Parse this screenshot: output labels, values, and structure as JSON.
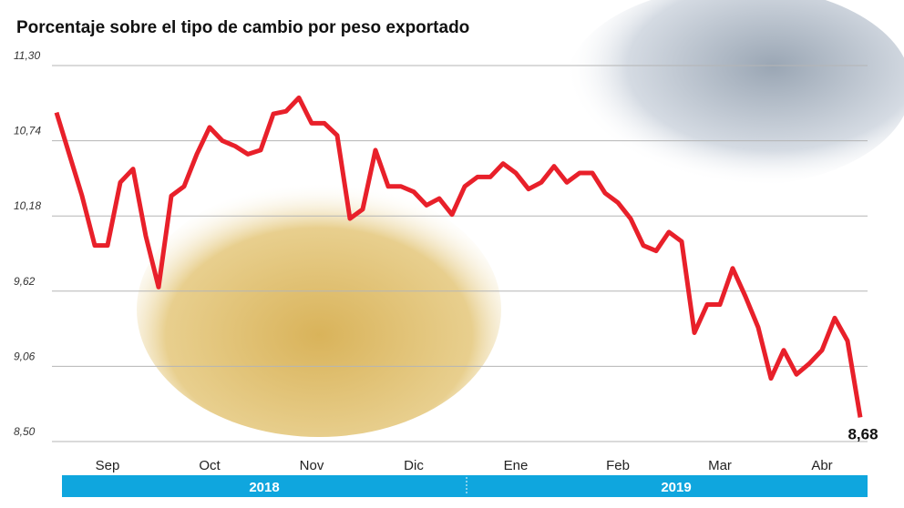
{
  "chart_data": {
    "type": "line",
    "title": "Porcentaje sobre el tipo de cambio por peso exportado",
    "categories": [
      null,
      null,
      null,
      null,
      "Sep",
      null,
      null,
      null,
      null,
      null,
      null,
      null,
      "Oct",
      null,
      null,
      null,
      null,
      null,
      null,
      null,
      "Nov",
      null,
      null,
      null,
      null,
      null,
      null,
      null,
      "Dic",
      null,
      null,
      null,
      null,
      null,
      null,
      null,
      "Ene",
      null,
      null,
      null,
      null,
      null,
      null,
      null,
      "Feb",
      null,
      null,
      null,
      null,
      null,
      null,
      null,
      "Mar",
      null,
      null,
      null,
      null,
      null,
      null,
      null,
      "Abr",
      null,
      null,
      null
    ],
    "series": [
      {
        "color": "#e8202a",
        "values": [
          10.95,
          10.64,
          10.33,
          9.96,
          9.96,
          10.43,
          10.53,
          10.03,
          9.65,
          10.33,
          10.4,
          10.64,
          10.84,
          10.74,
          10.7,
          10.64,
          10.67,
          10.94,
          10.96,
          11.06,
          10.87,
          10.87,
          10.78,
          10.16,
          10.23,
          10.67,
          10.4,
          10.4,
          10.36,
          10.26,
          10.31,
          10.19,
          10.4,
          10.47,
          10.47,
          10.57,
          10.5,
          10.38,
          10.43,
          10.55,
          10.43,
          10.5,
          10.5,
          10.35,
          10.28,
          10.16,
          9.96,
          9.92,
          10.06,
          9.99,
          9.31,
          9.52,
          9.52,
          9.79,
          9.58,
          9.35,
          8.97,
          9.18,
          9.0,
          9.08,
          9.18,
          9.42,
          9.25,
          8.68
        ],
        "end_label": "8,68"
      }
    ],
    "ylim": [
      8.5,
      11.3
    ],
    "yticks": [
      {
        "value": 8.5,
        "label": "8,50"
      },
      {
        "value": 9.06,
        "label": "9,06"
      },
      {
        "value": 9.62,
        "label": "9,62"
      },
      {
        "value": 10.18,
        "label": "10,18"
      },
      {
        "value": 10.74,
        "label": "10,74"
      },
      {
        "value": 11.3,
        "label": "11,30"
      }
    ],
    "grid": true,
    "years": [
      "2018",
      "2019"
    ]
  }
}
